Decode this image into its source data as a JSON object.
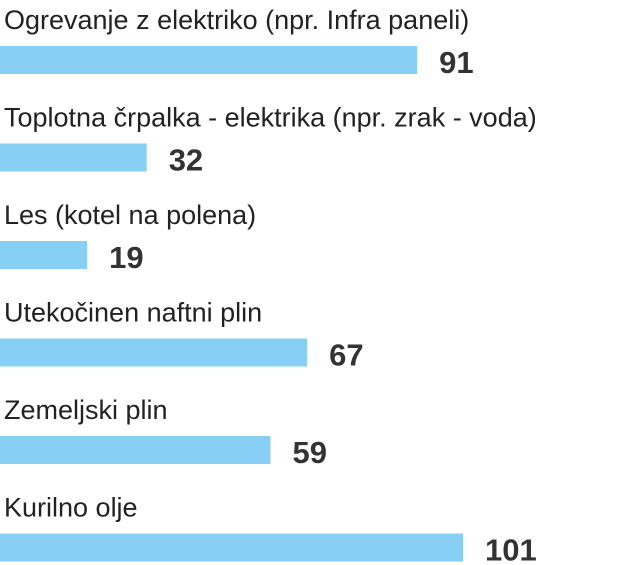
{
  "chart_data": {
    "type": "bar",
    "orientation": "horizontal",
    "categories": [
      "Ogrevanje z elektriko (npr. Infra paneli)",
      "Toplotna črpalka - elektrika (npr. zrak - voda)",
      "Les (kotel na polena)",
      "Utekočinen naftni plin",
      "Zemeljski plin",
      "Kurilno olje"
    ],
    "values": [
      91,
      32,
      19,
      67,
      59,
      101
    ],
    "xlim": [
      0,
      101
    ],
    "bar_color": "#87CFF5",
    "value_color": "#333333",
    "label_color": "#222222",
    "grid": false,
    "legend": "none"
  }
}
